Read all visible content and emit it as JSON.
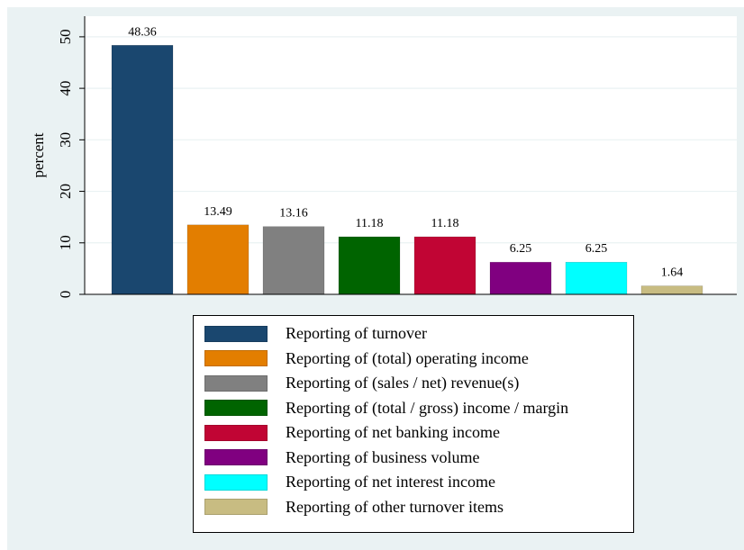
{
  "chart_data": {
    "type": "bar",
    "ylabel": "percent",
    "ylim": [
      0,
      54
    ],
    "yticks": [
      0,
      10,
      20,
      30,
      40,
      50
    ],
    "grid": true,
    "legend_position": "bottom",
    "series": [
      {
        "name": "Reporting of turnover",
        "value": 48.36,
        "label": "48.36",
        "color": "#1a476f"
      },
      {
        "name": "Reporting of (total) operating income",
        "value": 13.49,
        "label": "13.49",
        "color": "#e37e00"
      },
      {
        "name": "Reporting of (sales / net) revenue(s)",
        "value": 13.16,
        "label": "13.16",
        "color": "#808080"
      },
      {
        "name": "Reporting of (total / gross) income / margin",
        "value": 11.18,
        "label": "11.18",
        "color": "#006400"
      },
      {
        "name": "Reporting of net banking income",
        "value": 11.18,
        "label": "11.18",
        "color": "#c10534"
      },
      {
        "name": "Reporting of business volume",
        "value": 6.25,
        "label": "6.25",
        "color": "#800080"
      },
      {
        "name": "Reporting of net interest income",
        "value": 6.25,
        "label": "6.25",
        "color": "#00ffff"
      },
      {
        "name": "Reporting of other turnover items",
        "value": 1.64,
        "label": "1.64",
        "color": "#c8bc82"
      }
    ]
  }
}
